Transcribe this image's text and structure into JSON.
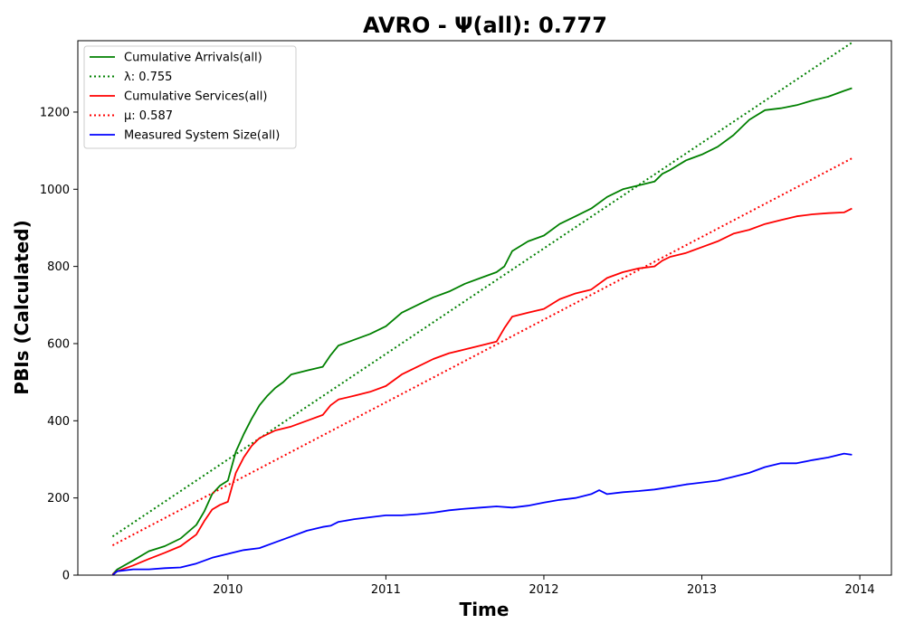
{
  "chart_data": {
    "type": "line",
    "title": "AVRO -  Ψ(all): 0.777",
    "xlabel": "Time",
    "ylabel": "PBIs (Calculated)",
    "xlim": [
      2009.05,
      2014.2
    ],
    "ylim": [
      0,
      1385
    ],
    "x_ticks": [
      2010,
      2011,
      2012,
      2013,
      2014
    ],
    "x_tick_labels": [
      "2010",
      "2011",
      "2012",
      "2013",
      "2014"
    ],
    "y_ticks": [
      0,
      200,
      400,
      600,
      800,
      1000,
      1200
    ],
    "y_tick_labels": [
      "0",
      "200",
      "400",
      "600",
      "800",
      "1000",
      "1200"
    ],
    "grid": false,
    "legend_position": "upper left",
    "legend": [
      "Cumulative Arrivals(all)",
      "λ: 0.755",
      "Cumulative Services(all)",
      "μ: 0.587",
      "Measured System Size(all)"
    ],
    "series": [
      {
        "name": "Cumulative Arrivals(all)",
        "color": "#008000",
        "style": "solid",
        "x": [
          2009.27,
          2009.3,
          2009.4,
          2009.5,
          2009.6,
          2009.7,
          2009.8,
          2009.85,
          2009.9,
          2009.95,
          2010.0,
          2010.05,
          2010.1,
          2010.15,
          2010.2,
          2010.25,
          2010.3,
          2010.35,
          2010.4,
          2010.5,
          2010.6,
          2010.65,
          2010.7,
          2010.8,
          2010.9,
          2011.0,
          2011.1,
          2011.2,
          2011.3,
          2011.4,
          2011.5,
          2011.6,
          2011.7,
          2011.75,
          2011.8,
          2011.9,
          2012.0,
          2012.1,
          2012.2,
          2012.3,
          2012.4,
          2012.5,
          2012.6,
          2012.7,
          2012.75,
          2012.8,
          2012.9,
          2013.0,
          2013.1,
          2013.2,
          2013.3,
          2013.4,
          2013.5,
          2013.6,
          2013.7,
          2013.8,
          2013.9,
          2013.95
        ],
        "y": [
          2,
          15,
          38,
          62,
          75,
          95,
          130,
          165,
          210,
          232,
          245,
          320,
          365,
          405,
          440,
          465,
          485,
          500,
          520,
          530,
          540,
          570,
          595,
          610,
          625,
          645,
          680,
          700,
          720,
          735,
          755,
          770,
          785,
          800,
          840,
          865,
          880,
          910,
          930,
          950,
          980,
          1000,
          1010,
          1020,
          1040,
          1050,
          1075,
          1090,
          1110,
          1140,
          1180,
          1205,
          1210,
          1218,
          1230,
          1240,
          1255,
          1262
        ]
      },
      {
        "name": "λ: 0.755",
        "color": "#008000",
        "style": "dotted",
        "x": [
          2009.27,
          2013.95
        ],
        "y": [
          100,
          1380
        ]
      },
      {
        "name": "Cumulative Services(all)",
        "color": "#ff0000",
        "style": "solid",
        "x": [
          2009.27,
          2009.3,
          2009.4,
          2009.5,
          2009.6,
          2009.7,
          2009.8,
          2009.85,
          2009.9,
          2009.95,
          2010.0,
          2010.05,
          2010.1,
          2010.15,
          2010.2,
          2010.3,
          2010.4,
          2010.5,
          2010.6,
          2010.65,
          2010.7,
          2010.8,
          2010.9,
          2011.0,
          2011.1,
          2011.2,
          2011.3,
          2011.4,
          2011.5,
          2011.6,
          2011.7,
          2011.75,
          2011.8,
          2011.9,
          2012.0,
          2012.1,
          2012.2,
          2012.3,
          2012.4,
          2012.5,
          2012.6,
          2012.7,
          2012.75,
          2012.8,
          2012.9,
          2013.0,
          2013.1,
          2013.2,
          2013.3,
          2013.4,
          2013.5,
          2013.6,
          2013.7,
          2013.8,
          2013.9,
          2013.95
        ],
        "y": [
          2,
          10,
          25,
          42,
          58,
          75,
          105,
          140,
          170,
          182,
          190,
          265,
          305,
          335,
          355,
          375,
          385,
          400,
          415,
          440,
          455,
          465,
          475,
          490,
          520,
          540,
          560,
          575,
          585,
          595,
          605,
          640,
          670,
          680,
          690,
          715,
          730,
          740,
          770,
          785,
          795,
          800,
          815,
          825,
          835,
          850,
          865,
          885,
          895,
          910,
          920,
          930,
          935,
          938,
          940,
          950
        ]
      },
      {
        "name": "μ: 0.587",
        "color": "#ff0000",
        "style": "dotted",
        "x": [
          2009.27,
          2013.95
        ],
        "y": [
          77,
          1080
        ]
      },
      {
        "name": "Measured System Size(all)",
        "color": "#0000ff",
        "style": "solid",
        "x": [
          2009.27,
          2009.3,
          2009.4,
          2009.5,
          2009.6,
          2009.7,
          2009.8,
          2009.9,
          2010.0,
          2010.1,
          2010.2,
          2010.3,
          2010.4,
          2010.5,
          2010.6,
          2010.65,
          2010.7,
          2010.8,
          2010.9,
          2011.0,
          2011.1,
          2011.2,
          2011.3,
          2011.4,
          2011.5,
          2011.6,
          2011.7,
          2011.8,
          2011.9,
          2012.0,
          2012.1,
          2012.2,
          2012.3,
          2012.35,
          2012.4,
          2012.5,
          2012.6,
          2012.7,
          2012.8,
          2012.9,
          2013.0,
          2013.1,
          2013.2,
          2013.3,
          2013.4,
          2013.5,
          2013.6,
          2013.7,
          2013.8,
          2013.9,
          2013.95
        ],
        "y": [
          0,
          10,
          15,
          15,
          18,
          20,
          30,
          45,
          55,
          65,
          70,
          85,
          100,
          115,
          125,
          128,
          138,
          145,
          150,
          155,
          155,
          158,
          162,
          168,
          172,
          175,
          178,
          175,
          180,
          188,
          195,
          200,
          210,
          220,
          210,
          215,
          218,
          222,
          228,
          235,
          240,
          245,
          255,
          265,
          280,
          290,
          290,
          298,
          305,
          315,
          312
        ]
      }
    ]
  }
}
